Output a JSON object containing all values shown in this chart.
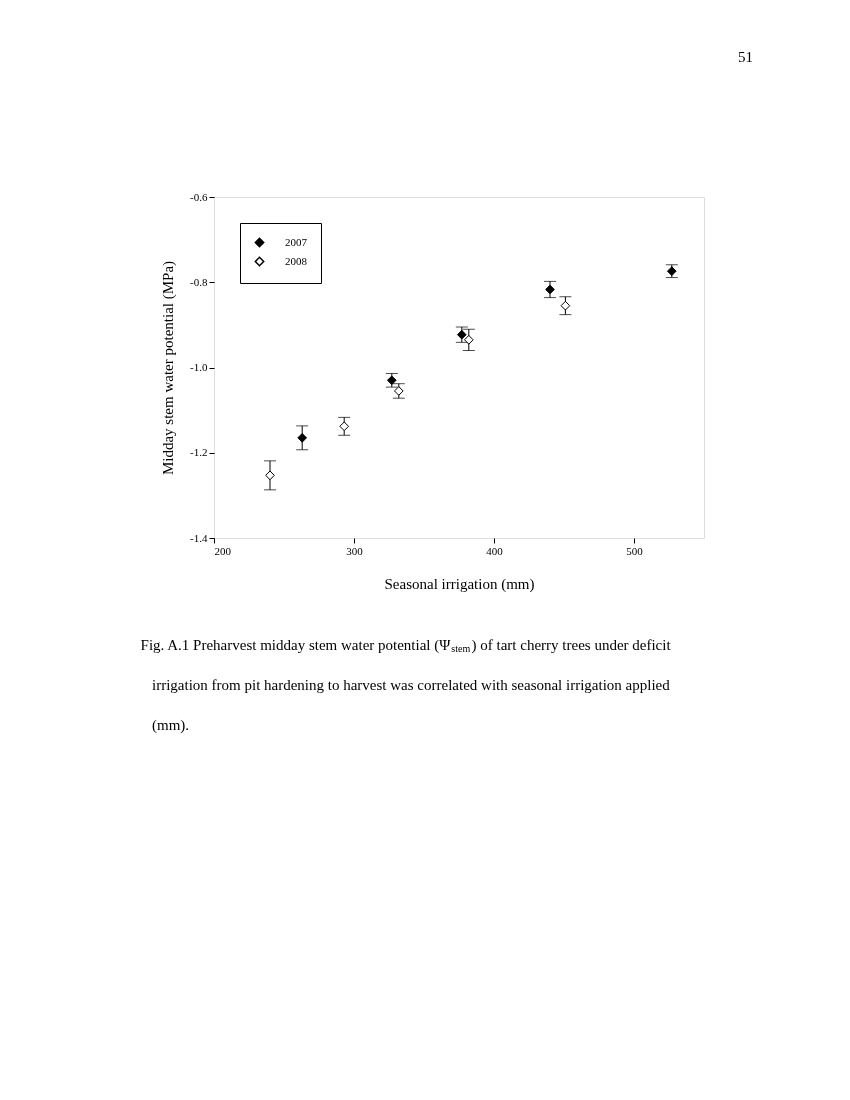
{
  "chart_data": {
    "type": "scatter",
    "xlabel": "Seasonal irrigation (mm)",
    "ylabel": "Midday stem water potential (MPa)",
    "xlim": [
      200,
      550
    ],
    "xticks": [
      200,
      300,
      400,
      500
    ],
    "ylim": [
      -1.4,
      -0.6
    ],
    "yticks": [
      {
        "value": -1.4,
        "label": "-1.4"
      },
      {
        "value": -1.2,
        "label": "-1.2"
      },
      {
        "value": -1.0,
        "label": "-1.0"
      },
      {
        "value": -0.8,
        "label": "-0.8"
      },
      {
        "value": -0.6,
        "label": "-0.6"
      }
    ],
    "marker": "diamond",
    "legend": "top left",
    "grid": false,
    "series": [
      {
        "name": "2007",
        "color": "#000000",
        "x": [
          263,
          327,
          377,
          440,
          527
        ],
        "values": [
          -1.165,
          -1.03,
          -0.923,
          -0.817,
          -0.774
        ],
        "errors": [
          0.028,
          0.016,
          0.018,
          0.019,
          0.015
        ]
      },
      {
        "name": "2008",
        "color": "#ffffff",
        "x": [
          240,
          293,
          332,
          382,
          451
        ],
        "values": [
          -1.253,
          -1.138,
          -1.055,
          -0.935,
          -0.855
        ],
        "errors": [
          0.034,
          0.021,
          0.017,
          0.025,
          0.021
        ]
      }
    ],
    "annotations": [
      "51",
      "Fig. A.1  Preharvest midday stem water potential (Ψ$_{stem}$) of tart cherry trees under deficit irrigation from pit hardening to harvest was correlated with seasonal irrigation applied (mm)."
    ]
  }
}
